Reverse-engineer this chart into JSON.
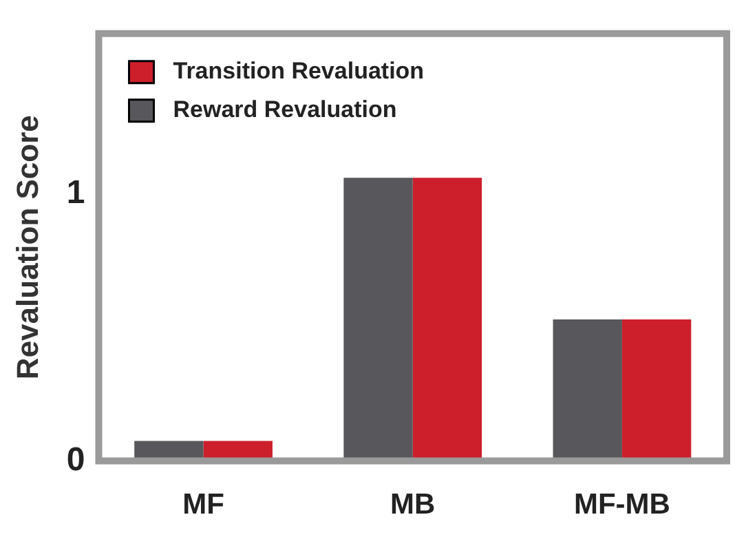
{
  "chart_data": {
    "type": "bar",
    "ylabel": "Revaluation Score",
    "categories": [
      "MF",
      "MB",
      "MF-MB"
    ],
    "series": [
      {
        "name": "Reward Revaluation",
        "color": "#58585c",
        "values": [
          0.075,
          1.06,
          0.53
        ]
      },
      {
        "name": "Transition Revaluation",
        "color": "#cc1f2b",
        "values": [
          0.075,
          1.06,
          0.53
        ]
      }
    ],
    "ylim": [
      0,
      1.6
    ],
    "yticks": [
      0,
      1
    ],
    "grid": false,
    "legend": "top left"
  }
}
